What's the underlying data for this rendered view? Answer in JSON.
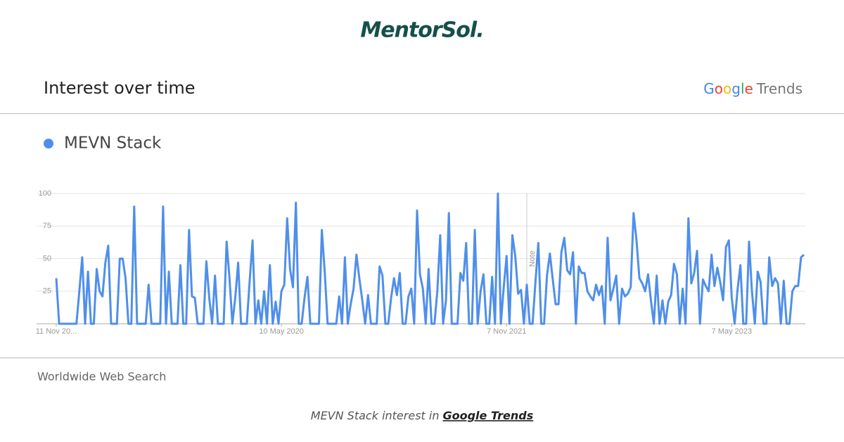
{
  "logo": "MentorSol.",
  "header": {
    "brand_left": "Google",
    "brand_right": "Trends"
  },
  "chart_data": {
    "type": "line",
    "title": "Interest over time",
    "categories": [
      "11 Nov 20...",
      null,
      null,
      null,
      null,
      null,
      null,
      null,
      null,
      null,
      null,
      null,
      null,
      null,
      null,
      null,
      null,
      null,
      null,
      null,
      null,
      null,
      null,
      null,
      null,
      null,
      null,
      null,
      null,
      null,
      null,
      null,
      null,
      null,
      null,
      null,
      null,
      null,
      null,
      null,
      null,
      null,
      null,
      null,
      null,
      null,
      null,
      null,
      null,
      null,
      null,
      null,
      null,
      null,
      null,
      null,
      null,
      null,
      null,
      null,
      null,
      null,
      null,
      null,
      null,
      null,
      null,
      null,
      null,
      null,
      null,
      null,
      null,
      null,
      null,
      null,
      null,
      null,
      "10 May 2020",
      null,
      null,
      null,
      null,
      null,
      null,
      null,
      null,
      null,
      null,
      null,
      null,
      null,
      null,
      null,
      null,
      null,
      null,
      null,
      null,
      null,
      null,
      null,
      null,
      null,
      null,
      null,
      null,
      null,
      null,
      null,
      null,
      null,
      null,
      null,
      null,
      null,
      null,
      null,
      null,
      null,
      null,
      null,
      null,
      null,
      null,
      null,
      null,
      null,
      null,
      null,
      null,
      null,
      null,
      null,
      null,
      null,
      null,
      null,
      null,
      null,
      null,
      null,
      null,
      null,
      null,
      null,
      null,
      null,
      null,
      null,
      null,
      null,
      null,
      null,
      null,
      null,
      "7 Nov 2021",
      null,
      null,
      null,
      null,
      null,
      null,
      null,
      null,
      null,
      null,
      null,
      null,
      null,
      null,
      null,
      null,
      null,
      null,
      null,
      null,
      null,
      null,
      null,
      null,
      null,
      null,
      null,
      null,
      null,
      null,
      null,
      null,
      null,
      null,
      null,
      null,
      null,
      null,
      null,
      null,
      null,
      null,
      null,
      null,
      null,
      null,
      null,
      null,
      null,
      null,
      null,
      null,
      null,
      null,
      null,
      null,
      null,
      null,
      null,
      null,
      null,
      null,
      null,
      null,
      null,
      null,
      null,
      null,
      null,
      null,
      null,
      null,
      null,
      null,
      null,
      null,
      null,
      "7 May 2023",
      null,
      null,
      null,
      null,
      null,
      null,
      null,
      null,
      null,
      null,
      null,
      null,
      null,
      null,
      null,
      null,
      null,
      null,
      null,
      null,
      null,
      null,
      null,
      null,
      null
    ],
    "series": [
      {
        "name": "MEVN Stack",
        "color": "#4f8fea",
        "values": [
          35,
          0,
          0,
          0,
          0,
          0,
          0,
          0,
          25,
          51,
          0,
          40,
          0,
          0,
          42,
          25,
          21,
          47,
          60,
          0,
          0,
          0,
          50,
          50,
          35,
          0,
          0,
          90,
          0,
          0,
          0,
          0,
          30,
          0,
          0,
          0,
          0,
          90,
          0,
          40,
          0,
          0,
          0,
          45,
          0,
          0,
          72,
          21,
          20,
          0,
          0,
          0,
          48,
          20,
          0,
          37,
          0,
          0,
          0,
          63,
          35,
          0,
          20,
          47,
          0,
          0,
          0,
          33,
          64,
          0,
          18,
          0,
          25,
          0,
          45,
          0,
          17,
          0,
          25,
          30,
          81,
          42,
          28,
          93,
          0,
          0,
          20,
          36,
          0,
          0,
          0,
          0,
          72,
          40,
          0,
          0,
          0,
          0,
          21,
          0,
          51,
          0,
          15,
          27,
          53,
          35,
          18,
          0,
          22,
          0,
          0,
          0,
          44,
          37,
          0,
          0,
          20,
          35,
          22,
          39,
          0,
          0,
          21,
          27,
          0,
          87,
          38,
          27,
          0,
          42,
          0,
          0,
          25,
          68,
          0,
          18,
          85,
          0,
          0,
          0,
          39,
          33,
          62,
          0,
          0,
          72,
          0,
          25,
          38,
          0,
          0,
          36,
          0,
          100,
          0,
          28,
          52,
          0,
          68,
          52,
          23,
          26,
          0,
          30,
          0,
          0,
          32,
          62,
          0,
          0,
          37,
          54,
          34,
          15,
          15,
          55,
          66,
          41,
          38,
          55,
          0,
          44,
          39,
          39,
          25,
          21,
          18,
          30,
          22,
          29,
          0,
          66,
          18,
          27,
          37,
          0,
          27,
          21,
          23,
          28,
          85,
          64,
          35,
          31,
          25,
          38,
          18,
          0,
          37,
          0,
          18,
          0,
          17,
          22,
          46,
          38,
          0,
          27,
          0,
          81,
          31,
          39,
          56,
          0,
          34,
          29,
          25,
          53,
          29,
          43,
          32,
          18,
          59,
          64,
          20,
          0,
          26,
          45,
          0,
          0,
          63,
          25,
          0,
          40,
          32,
          0,
          0,
          51,
          29,
          35,
          31,
          0,
          33,
          0,
          0,
          25,
          29,
          29,
          51,
          53
        ]
      }
    ],
    "ylim": [
      0,
      100
    ],
    "yticks": [
      25,
      50,
      75,
      100
    ],
    "grid": true,
    "annotations": [
      {
        "text": "Note",
        "index": 163
      }
    ]
  },
  "footer": {
    "region": "Worldwide Web Search",
    "caption": "MEVN Stack interest in",
    "link": "Google Trends"
  }
}
